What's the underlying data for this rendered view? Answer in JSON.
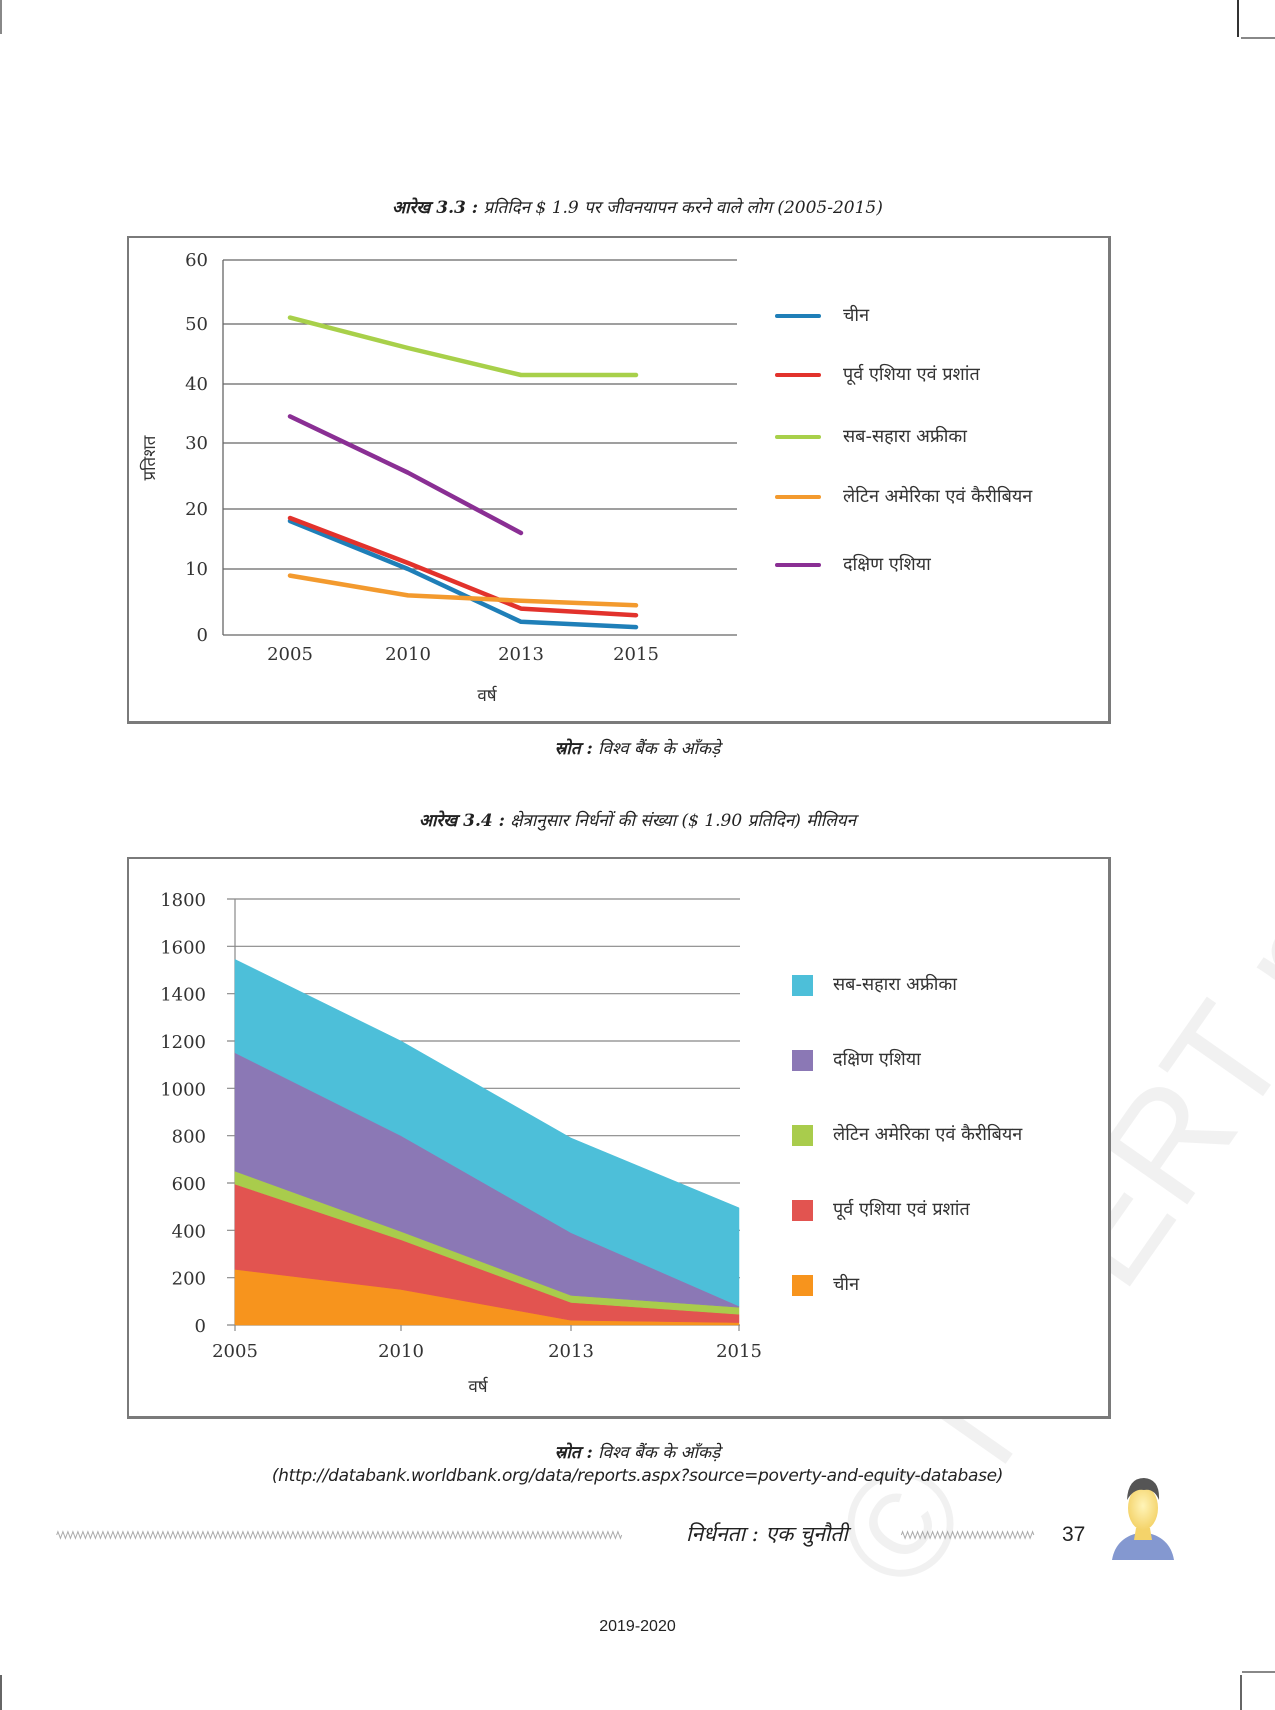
{
  "watermark": "© NCERT not to be republished",
  "chart_data": [
    {
      "type": "line",
      "id": "figure-3-3",
      "title_label": "आरेख 3.3 :",
      "title": "प्रतिदिन $ 1.9 पर जीवनयापन करने वाले लोग (2005-2015)",
      "xlabel": "वर्ष",
      "ylabel": "प्रतिशत",
      "categories": [
        "2005",
        "2010",
        "2013",
        "2015"
      ],
      "yticks": [
        0,
        10,
        20,
        30,
        40,
        50,
        60
      ],
      "ylim": [
        0,
        60
      ],
      "grid": true,
      "legend_position": "right",
      "series": [
        {
          "name": "चीन",
          "color": "#1f7fb8",
          "values": [
            18,
            10,
            2,
            1.2
          ]
        },
        {
          "name": "पूर्व एशिया एवं प्रशांत",
          "color": "#e2322c",
          "values": [
            18.5,
            11,
            4,
            3
          ]
        },
        {
          "name": "सब-सहारा अफ्रीका",
          "color": "#a8d04a",
          "values": [
            51,
            46,
            41.5,
            41.5
          ]
        },
        {
          "name": "लेटिन अमेरिका एवं कैरीबियन",
          "color": "#f39a2e",
          "values": [
            9,
            6,
            5.2,
            4.5
          ]
        },
        {
          "name": "दक्षिण एशिया",
          "color": "#8a2f94",
          "values": [
            34.5,
            25.5,
            16,
            null
          ]
        }
      ],
      "source_label": "स्रोत :",
      "source": "विश्व बैंक के आँकड़े"
    },
    {
      "type": "area",
      "stacked": true,
      "id": "figure-3-4",
      "title_label": "आरेख 3.4 :",
      "title": "क्षेत्रानुसार निर्धनों की संख्या ($ 1.90 प्रतिदिन) मीलियन",
      "xlabel": "वर्ष",
      "ylabel": "",
      "categories": [
        "2005",
        "2010",
        "2013",
        "2015"
      ],
      "yticks": [
        0,
        200,
        400,
        600,
        800,
        1000,
        1200,
        1400,
        1600,
        1800
      ],
      "ylim": [
        0,
        1800
      ],
      "grid": true,
      "legend_position": "right",
      "series": [
        {
          "name": "चीन",
          "color": "#f7941d",
          "values": [
            235,
            150,
            20,
            10
          ]
        },
        {
          "name": "पूर्व एशिया एवं प्रशांत",
          "color": "#e25450",
          "values": [
            360,
            210,
            75,
            35
          ]
        },
        {
          "name": "लेटिन अमेरिका एवं कैरीबियन",
          "color": "#a9cc4c",
          "values": [
            55,
            35,
            30,
            30
          ]
        },
        {
          "name": "दक्षिण एशिया",
          "color": "#8b78b5",
          "values": [
            500,
            405,
            265,
            5
          ]
        },
        {
          "name": "सब-सहारा अफ्रीका",
          "color": "#4dbfd9",
          "values": [
            395,
            400,
            400,
            415
          ]
        }
      ],
      "legend_order": [
        "सब-सहारा अफ्रीका",
        "दक्षिण एशिया",
        "लेटिन अमेरिका एवं कैरीबियन",
        "पूर्व एशिया एवं प्रशांत",
        "चीन"
      ],
      "source_label": "स्रोत :",
      "source": "विश्व बैंक के आँकड़े",
      "source_url": "(http://databank.worldbank.org/data/reports.aspx?source=poverty-and-equity-database)"
    }
  ],
  "footer": {
    "chapter_title": "निर्धनता : एक चुनौती",
    "page_number": "37",
    "session": "2019-2020"
  }
}
